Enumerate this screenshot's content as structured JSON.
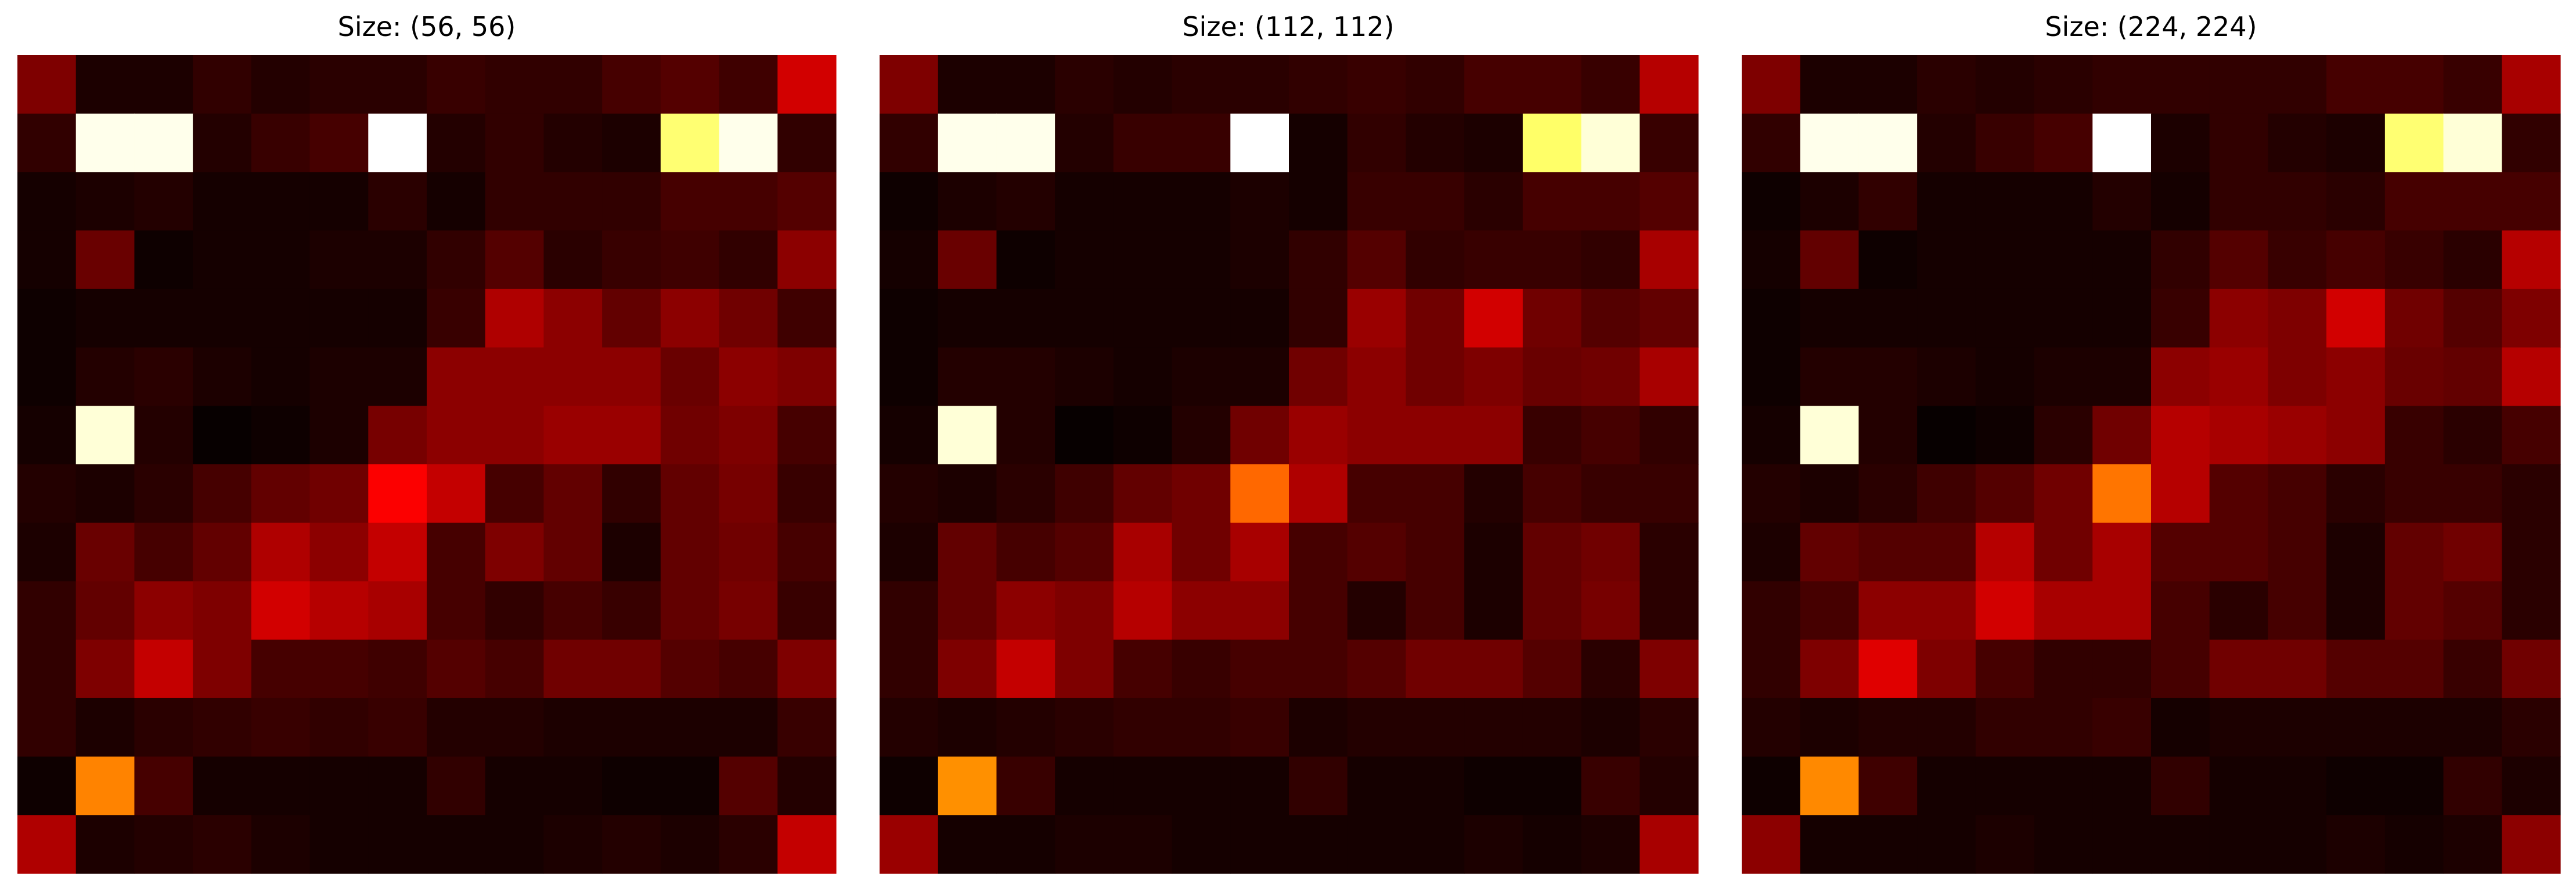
{
  "figure": {
    "panels": [
      {
        "title": "Size: (56, 56)"
      },
      {
        "title": "Size: (112, 112)"
      },
      {
        "title": "Size: (224, 224)"
      }
    ]
  },
  "chart_data": [
    {
      "type": "heatmap",
      "title": "Size: (56, 56)",
      "colormap": "hot",
      "rows": 14,
      "cols": 14,
      "values": [
        [
          0.18,
          0.04,
          0.04,
          0.07,
          0.05,
          0.06,
          0.06,
          0.08,
          0.07,
          0.07,
          0.1,
          0.12,
          0.09,
          0.3
        ],
        [
          0.07,
          0.98,
          0.98,
          0.05,
          0.08,
          0.1,
          1.0,
          0.05,
          0.07,
          0.05,
          0.04,
          0.86,
          0.98,
          0.07
        ],
        [
          0.03,
          0.04,
          0.05,
          0.03,
          0.03,
          0.03,
          0.06,
          0.03,
          0.07,
          0.07,
          0.07,
          0.1,
          0.1,
          0.12
        ],
        [
          0.03,
          0.15,
          0.02,
          0.03,
          0.03,
          0.04,
          0.04,
          0.07,
          0.12,
          0.06,
          0.08,
          0.09,
          0.07,
          0.2
        ],
        [
          0.02,
          0.03,
          0.03,
          0.03,
          0.03,
          0.03,
          0.03,
          0.08,
          0.25,
          0.2,
          0.14,
          0.2,
          0.16,
          0.09
        ],
        [
          0.02,
          0.05,
          0.06,
          0.04,
          0.03,
          0.04,
          0.04,
          0.2,
          0.2,
          0.2,
          0.2,
          0.15,
          0.2,
          0.18
        ],
        [
          0.03,
          0.96,
          0.05,
          0.01,
          0.02,
          0.04,
          0.17,
          0.2,
          0.2,
          0.22,
          0.22,
          0.16,
          0.18,
          0.1
        ],
        [
          0.05,
          0.04,
          0.06,
          0.1,
          0.14,
          0.16,
          0.36,
          0.28,
          0.1,
          0.14,
          0.07,
          0.14,
          0.17,
          0.08
        ],
        [
          0.04,
          0.15,
          0.1,
          0.14,
          0.25,
          0.2,
          0.28,
          0.1,
          0.18,
          0.14,
          0.04,
          0.14,
          0.16,
          0.1
        ],
        [
          0.07,
          0.14,
          0.2,
          0.18,
          0.3,
          0.26,
          0.24,
          0.1,
          0.07,
          0.1,
          0.08,
          0.14,
          0.17,
          0.08
        ],
        [
          0.07,
          0.18,
          0.28,
          0.18,
          0.1,
          0.1,
          0.09,
          0.12,
          0.1,
          0.16,
          0.16,
          0.12,
          0.1,
          0.18
        ],
        [
          0.07,
          0.04,
          0.06,
          0.07,
          0.08,
          0.07,
          0.08,
          0.05,
          0.05,
          0.04,
          0.04,
          0.04,
          0.04,
          0.08
        ],
        [
          0.02,
          0.56,
          0.1,
          0.03,
          0.03,
          0.03,
          0.03,
          0.07,
          0.03,
          0.03,
          0.02,
          0.02,
          0.12,
          0.05
        ],
        [
          0.25,
          0.04,
          0.05,
          0.06,
          0.04,
          0.03,
          0.03,
          0.03,
          0.03,
          0.04,
          0.05,
          0.04,
          0.06,
          0.28
        ]
      ]
    },
    {
      "type": "heatmap",
      "title": "Size: (112, 112)",
      "colormap": "hot",
      "rows": 14,
      "cols": 14,
      "values": [
        [
          0.18,
          0.04,
          0.04,
          0.06,
          0.05,
          0.06,
          0.06,
          0.07,
          0.08,
          0.07,
          0.1,
          0.1,
          0.08,
          0.26
        ],
        [
          0.07,
          0.98,
          0.98,
          0.05,
          0.08,
          0.08,
          1.0,
          0.03,
          0.07,
          0.05,
          0.04,
          0.85,
          0.96,
          0.08
        ],
        [
          0.02,
          0.04,
          0.05,
          0.03,
          0.03,
          0.03,
          0.04,
          0.03,
          0.08,
          0.08,
          0.06,
          0.1,
          0.1,
          0.12
        ],
        [
          0.03,
          0.15,
          0.02,
          0.03,
          0.03,
          0.03,
          0.04,
          0.07,
          0.12,
          0.07,
          0.08,
          0.08,
          0.07,
          0.24
        ],
        [
          0.02,
          0.03,
          0.03,
          0.03,
          0.03,
          0.03,
          0.03,
          0.07,
          0.22,
          0.16,
          0.3,
          0.16,
          0.12,
          0.14
        ],
        [
          0.02,
          0.05,
          0.05,
          0.04,
          0.03,
          0.04,
          0.04,
          0.16,
          0.2,
          0.16,
          0.18,
          0.15,
          0.16,
          0.24
        ],
        [
          0.03,
          0.96,
          0.05,
          0.01,
          0.02,
          0.05,
          0.16,
          0.22,
          0.2,
          0.2,
          0.2,
          0.08,
          0.1,
          0.07
        ],
        [
          0.05,
          0.04,
          0.06,
          0.09,
          0.14,
          0.16,
          0.52,
          0.25,
          0.1,
          0.1,
          0.05,
          0.1,
          0.08,
          0.08
        ],
        [
          0.04,
          0.14,
          0.1,
          0.12,
          0.24,
          0.16,
          0.24,
          0.1,
          0.12,
          0.1,
          0.04,
          0.14,
          0.16,
          0.06
        ],
        [
          0.07,
          0.14,
          0.2,
          0.18,
          0.26,
          0.2,
          0.2,
          0.1,
          0.05,
          0.1,
          0.04,
          0.14,
          0.17,
          0.06
        ],
        [
          0.07,
          0.18,
          0.28,
          0.18,
          0.1,
          0.08,
          0.1,
          0.1,
          0.12,
          0.16,
          0.16,
          0.12,
          0.06,
          0.18
        ],
        [
          0.05,
          0.04,
          0.05,
          0.06,
          0.07,
          0.07,
          0.08,
          0.04,
          0.05,
          0.05,
          0.05,
          0.05,
          0.04,
          0.06
        ],
        [
          0.02,
          0.58,
          0.08,
          0.03,
          0.03,
          0.03,
          0.03,
          0.07,
          0.03,
          0.03,
          0.02,
          0.02,
          0.08,
          0.05
        ],
        [
          0.22,
          0.03,
          0.03,
          0.04,
          0.04,
          0.03,
          0.03,
          0.03,
          0.03,
          0.03,
          0.04,
          0.03,
          0.04,
          0.24
        ]
      ]
    },
    {
      "type": "heatmap",
      "title": "Size: (224, 224)",
      "colormap": "hot",
      "rows": 14,
      "cols": 14,
      "values": [
        [
          0.18,
          0.04,
          0.04,
          0.06,
          0.05,
          0.06,
          0.07,
          0.07,
          0.07,
          0.07,
          0.1,
          0.1,
          0.08,
          0.24
        ],
        [
          0.07,
          0.98,
          0.98,
          0.05,
          0.08,
          0.1,
          1.0,
          0.04,
          0.07,
          0.05,
          0.04,
          0.86,
          0.96,
          0.07
        ],
        [
          0.02,
          0.04,
          0.07,
          0.03,
          0.03,
          0.03,
          0.05,
          0.03,
          0.07,
          0.07,
          0.06,
          0.1,
          0.1,
          0.1
        ],
        [
          0.03,
          0.14,
          0.02,
          0.03,
          0.03,
          0.03,
          0.03,
          0.07,
          0.12,
          0.08,
          0.1,
          0.08,
          0.06,
          0.26
        ],
        [
          0.02,
          0.03,
          0.03,
          0.03,
          0.03,
          0.03,
          0.03,
          0.08,
          0.2,
          0.18,
          0.3,
          0.16,
          0.12,
          0.18
        ],
        [
          0.02,
          0.05,
          0.05,
          0.04,
          0.03,
          0.04,
          0.04,
          0.2,
          0.22,
          0.18,
          0.2,
          0.15,
          0.14,
          0.26
        ],
        [
          0.03,
          0.96,
          0.05,
          0.01,
          0.02,
          0.06,
          0.16,
          0.26,
          0.24,
          0.22,
          0.2,
          0.08,
          0.06,
          0.1
        ],
        [
          0.05,
          0.04,
          0.06,
          0.09,
          0.12,
          0.16,
          0.54,
          0.26,
          0.12,
          0.1,
          0.06,
          0.08,
          0.08,
          0.06
        ],
        [
          0.04,
          0.14,
          0.12,
          0.12,
          0.26,
          0.16,
          0.24,
          0.12,
          0.12,
          0.1,
          0.04,
          0.14,
          0.16,
          0.06
        ],
        [
          0.07,
          0.1,
          0.2,
          0.2,
          0.3,
          0.24,
          0.24,
          0.1,
          0.06,
          0.1,
          0.04,
          0.14,
          0.12,
          0.06
        ],
        [
          0.07,
          0.18,
          0.32,
          0.18,
          0.1,
          0.07,
          0.07,
          0.1,
          0.16,
          0.16,
          0.12,
          0.12,
          0.08,
          0.16
        ],
        [
          0.05,
          0.04,
          0.05,
          0.05,
          0.07,
          0.07,
          0.08,
          0.03,
          0.04,
          0.04,
          0.04,
          0.04,
          0.04,
          0.06
        ],
        [
          0.02,
          0.57,
          0.09,
          0.03,
          0.03,
          0.03,
          0.03,
          0.07,
          0.03,
          0.03,
          0.02,
          0.02,
          0.07,
          0.04
        ],
        [
          0.2,
          0.03,
          0.03,
          0.03,
          0.04,
          0.03,
          0.03,
          0.03,
          0.03,
          0.03,
          0.04,
          0.03,
          0.04,
          0.2
        ]
      ]
    }
  ]
}
